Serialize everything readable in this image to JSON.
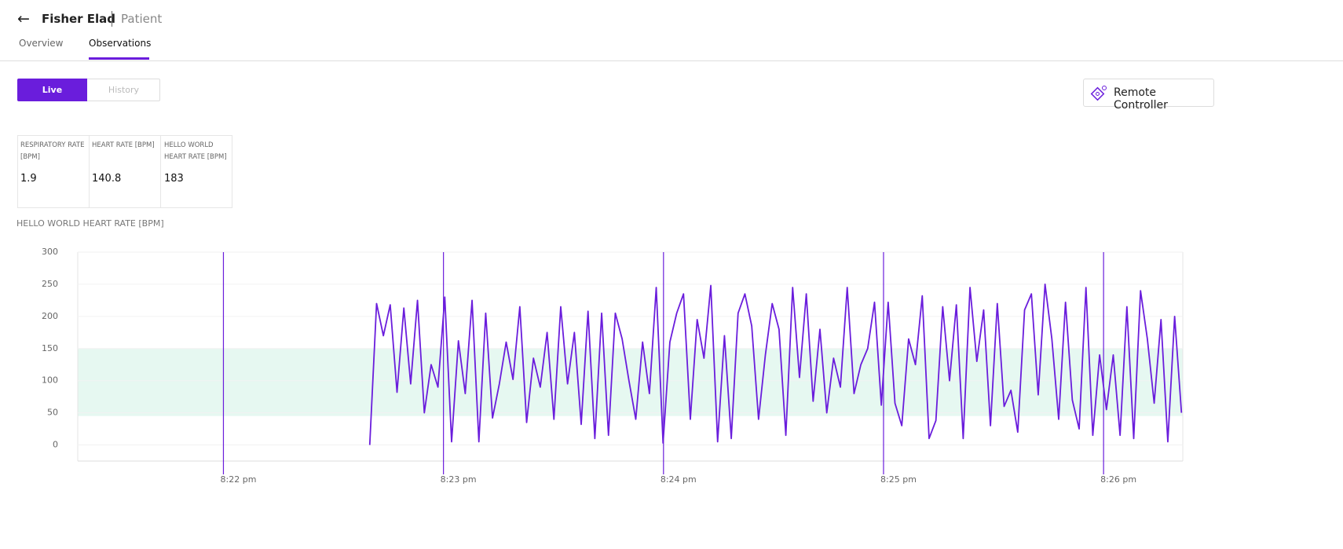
{
  "header": {
    "name": "Fisher Elad",
    "role": "Patient"
  },
  "tabs": [
    "Overview",
    "Observations"
  ],
  "toggle": [
    "Live",
    "History"
  ],
  "remote_button": "Remote Controller",
  "metrics": [
    {
      "label": "RESPIRATORY RATE [BPM]",
      "value": 1.9
    },
    {
      "label": "HEART RATE [BPM]",
      "value": 140.8
    },
    {
      "label": "HELLO WORLD HEART RATE [BPM]",
      "value": 183
    }
  ],
  "chart_data": {
    "type": "line",
    "title": "HELLO WORLD HEART RATE [BPM]",
    "color": "#6a1ddc",
    "band": [
      45,
      150
    ],
    "band_color": "#e6f8f1",
    "xlim": [
      21.338,
      26.36
    ],
    "ylim": [
      -25,
      300
    ],
    "yticks": [
      0,
      50,
      100,
      150,
      200,
      250,
      300
    ],
    "xticks": [
      {
        "value": 22,
        "label": "8:22 pm"
      },
      {
        "value": 23,
        "label": "8:23 pm"
      },
      {
        "value": 24,
        "label": "8:24 pm"
      },
      {
        "value": 25,
        "label": "8:25 pm"
      },
      {
        "value": 26,
        "label": "8:26 pm"
      }
    ],
    "x": [
      22.665,
      22.696,
      22.727,
      22.758,
      22.789,
      22.82,
      22.851,
      22.882,
      22.913,
      22.944,
      22.975,
      23.006,
      23.037,
      23.068,
      23.099,
      23.13,
      23.161,
      23.192,
      23.223,
      23.254,
      23.285,
      23.316,
      23.347,
      23.378,
      23.409,
      23.44,
      23.471,
      23.502,
      23.533,
      23.564,
      23.595,
      23.626,
      23.657,
      23.688,
      23.719,
      23.75,
      23.781,
      23.812,
      23.843,
      23.874,
      23.905,
      23.936,
      23.967,
      23.998,
      24.029,
      24.06,
      24.091,
      24.122,
      24.153,
      24.184,
      24.215,
      24.246,
      24.277,
      24.308,
      24.339,
      24.37,
      24.401,
      24.432,
      24.463,
      24.494,
      24.525,
      24.556,
      24.587,
      24.618,
      24.649,
      24.68,
      24.711,
      24.742,
      24.773,
      24.804,
      24.835,
      24.866,
      24.897,
      24.928,
      24.959,
      24.99,
      25.021,
      25.052,
      25.083,
      25.114,
      25.145,
      25.176,
      25.207,
      25.238,
      25.269,
      25.3,
      25.331,
      25.362,
      25.393,
      25.424,
      25.455,
      25.486,
      25.517,
      25.548,
      25.579,
      25.61,
      25.641,
      25.672,
      25.703,
      25.734,
      25.765,
      25.796,
      25.827,
      25.858,
      25.889,
      25.92,
      25.951,
      25.982,
      26.013,
      26.044,
      26.075,
      26.106,
      26.137,
      26.168,
      26.199,
      26.23,
      26.261,
      26.292,
      26.323,
      26.354
    ],
    "values": [
      0,
      220,
      170,
      218,
      82,
      213,
      95,
      225,
      50,
      125,
      90,
      230,
      5,
      162,
      80,
      225,
      5,
      205,
      42,
      95,
      160,
      102,
      215,
      35,
      135,
      90,
      175,
      40,
      215,
      95,
      175,
      32,
      208,
      10,
      205,
      15,
      205,
      165,
      100,
      40,
      160,
      80,
      245,
      3,
      160,
      205,
      235,
      40,
      195,
      135,
      248,
      5,
      170,
      10,
      205,
      235,
      185,
      40,
      140,
      220,
      180,
      15,
      245,
      105,
      235,
      68,
      180,
      50,
      135,
      90,
      245,
      80,
      125,
      150,
      222,
      62,
      222,
      65,
      30,
      165,
      125,
      232,
      10,
      38,
      215,
      100,
      218,
      10,
      245,
      130,
      210,
      30,
      220,
      60,
      85,
      20,
      210,
      235,
      78,
      250,
      165,
      40,
      222,
      70,
      25,
      245,
      15,
      140,
      55,
      140,
      15,
      215,
      10,
      240,
      165,
      65,
      195,
      5,
      200,
      50
    ]
  }
}
